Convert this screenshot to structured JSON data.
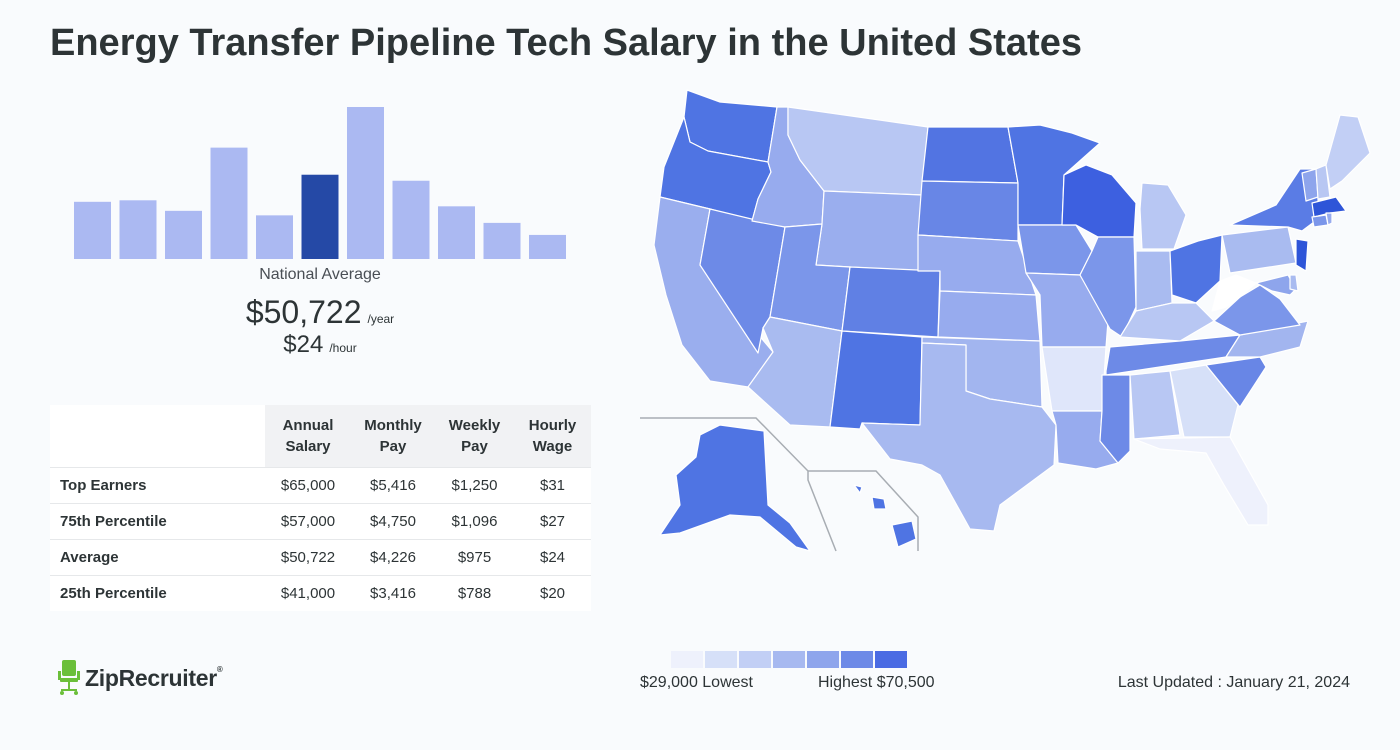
{
  "header": {
    "title": "Energy Transfer Pipeline Tech Salary in the United States"
  },
  "chart_data": [
    {
      "type": "bar",
      "title": "",
      "highlight_index": 5,
      "values": [
        38,
        39,
        32,
        74,
        29,
        56,
        101,
        52,
        35,
        24,
        16
      ],
      "colors": {
        "bar": "#abb9f2",
        "highlight": "#2549a6"
      },
      "axis": "none"
    },
    {
      "type": "choropleth",
      "title": "",
      "legend": {
        "low_label": "$29,000 Lowest",
        "high_label": "Highest $70,500"
      },
      "scale": [
        "#eef1fc",
        "#d6e0f8",
        "#c2cff5",
        "#a7b9f0",
        "#8ea5ec",
        "#6d8ae7",
        "#4a6be3"
      ]
    }
  ],
  "summary": {
    "label": "National Average",
    "annual": "$50,722",
    "annual_unit": "/year",
    "hourly": "$24",
    "hourly_unit": "/hour"
  },
  "table": {
    "headers": [
      [
        "Annual",
        "Salary"
      ],
      [
        "Monthly",
        "Pay"
      ],
      [
        "Weekly",
        "Pay"
      ],
      [
        "Hourly",
        "Wage"
      ]
    ],
    "rows": [
      {
        "label": "Top Earners",
        "values": [
          "$65,000",
          "$5,416",
          "$1,250",
          "$31"
        ]
      },
      {
        "label": "75th Percentile",
        "values": [
          "$57,000",
          "$4,750",
          "$1,096",
          "$27"
        ]
      },
      {
        "label": "Average",
        "values": [
          "$50,722",
          "$4,226",
          "$975",
          "$24"
        ]
      },
      {
        "label": "25th Percentile",
        "values": [
          "$41,000",
          "$3,416",
          "$788",
          "$20"
        ]
      }
    ]
  },
  "branding": {
    "logo_text": "ZipRecruiter",
    "logo_mark": "®",
    "logo_icon": "chair-icon",
    "logo_color": "#6bbf3a"
  },
  "footer": {
    "updated": "Last Updated : January 21, 2024"
  }
}
